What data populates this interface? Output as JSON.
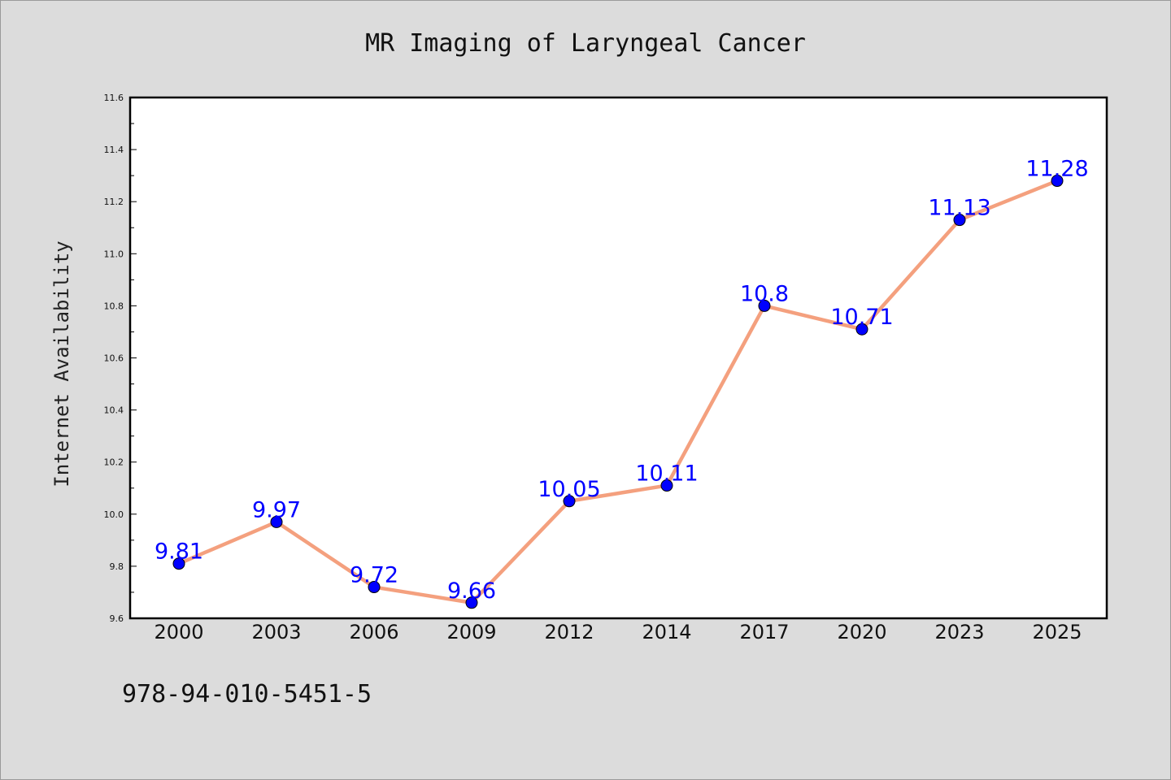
{
  "chart_data": {
    "type": "line",
    "title": "MR Imaging of Laryngeal Cancer",
    "xlabel": "",
    "ylabel": "Internet Availability",
    "categories": [
      "2000",
      "2003",
      "2006",
      "2009",
      "2012",
      "2014",
      "2017",
      "2020",
      "2023",
      "2025"
    ],
    "series": [
      {
        "values": [
          9.81,
          9.97,
          9.72,
          9.66,
          10.05,
          10.11,
          10.8,
          10.71,
          11.13,
          11.28
        ],
        "data_labels": [
          "9.81",
          "9.97",
          "9.72",
          "9.66",
          "10.05",
          "10.11",
          "10.8",
          "10.71",
          "11.13",
          "11.28"
        ]
      }
    ],
    "ylim": [
      9.6,
      11.6
    ],
    "yticks": [
      "9.6",
      "9.8",
      "10.0",
      "10.2",
      "10.4",
      "10.6",
      "10.8",
      "11.0",
      "11.2",
      "11.4",
      "11.6"
    ],
    "grid": false,
    "line_color": "#f4a07e",
    "marker_color": "#0000ff",
    "label_color": "#0000ff"
  },
  "footer_text": "978-94-010-5451-5"
}
